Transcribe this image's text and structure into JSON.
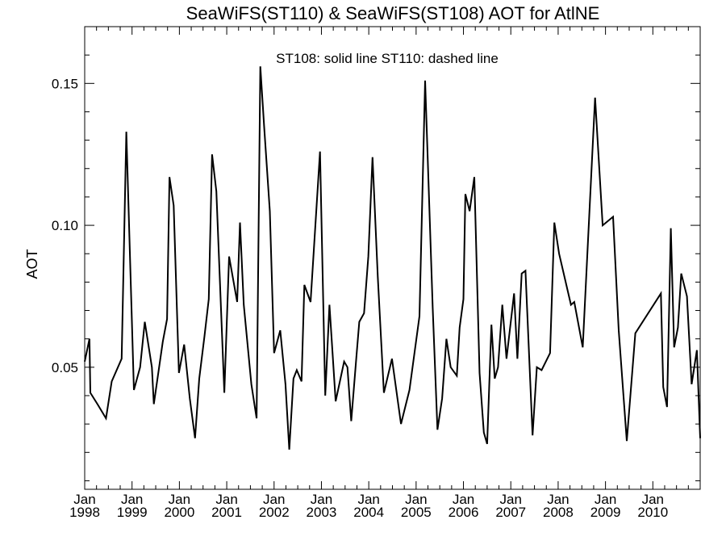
{
  "chart_data": {
    "type": "line",
    "title": "SeaWiFS(ST110) & SeaWiFS(ST108)  AOT for AtlNE",
    "annotation": "ST108: solid line   ST110: dashed line",
    "xlabel": "",
    "ylabel": "AOT",
    "xlim": [
      1998.0,
      2011.0
    ],
    "ylim": [
      0.007,
      0.17
    ],
    "yticks": [
      0.05,
      0.1,
      0.15
    ],
    "ytick_labels": [
      "0.05",
      "0.10",
      "0.15"
    ],
    "year_ticks": [
      {
        "year": 1998,
        "month": "Jan",
        "label": "1998"
      },
      {
        "year": 1999,
        "month": "Jan",
        "label": "1999"
      },
      {
        "year": 2000,
        "month": "Jan",
        "label": "2000"
      },
      {
        "year": 2001,
        "month": "Jan",
        "label": "2001"
      },
      {
        "year": 2002,
        "month": "Jan",
        "label": "2002"
      },
      {
        "year": 2003,
        "month": "Jan",
        "label": "2003"
      },
      {
        "year": 2004,
        "month": "Jan",
        "label": "2004"
      },
      {
        "year": 2005,
        "month": "Jan",
        "label": "2005"
      },
      {
        "year": 2006,
        "month": "Jan",
        "label": "2006"
      },
      {
        "year": 2007,
        "month": "Jan",
        "label": "2007"
      },
      {
        "year": 2008,
        "month": "Jan",
        "label": "2008"
      },
      {
        "year": 2009,
        "month": "Jan",
        "label": "2009"
      },
      {
        "year": 2010,
        "month": "Jan",
        "label": "2010"
      }
    ],
    "grid": false,
    "series": [
      {
        "name": "ST108",
        "style": "solid",
        "color": "#000000",
        "x": [
          1998.0,
          1998.1,
          1998.12,
          1998.27,
          1998.45,
          1998.57,
          1998.78,
          1998.88,
          1999.04,
          1999.17,
          1999.27,
          1999.42,
          1999.46,
          1999.65,
          1999.74,
          1999.79,
          1999.88,
          1999.99,
          2000.1,
          2000.22,
          2000.33,
          2000.42,
          2000.53,
          2000.62,
          2000.69,
          2000.78,
          2000.95,
          2001.05,
          2001.22,
          2001.28,
          2001.36,
          2001.52,
          2001.63,
          2001.71,
          2001.79,
          2001.91,
          2002.0,
          2002.13,
          2002.24,
          2002.32,
          2002.41,
          2002.48,
          2002.58,
          2002.64,
          2002.77,
          2002.97,
          2003.08,
          2003.17,
          2003.3,
          2003.48,
          2003.55,
          2003.63,
          2003.74,
          2003.8,
          2003.9,
          2003.99,
          2004.08,
          2004.19,
          2004.32,
          2004.49,
          2004.68,
          2004.86,
          2005.07,
          2005.19,
          2005.35,
          2005.45,
          2005.55,
          2005.64,
          2005.73,
          2005.86,
          2005.92,
          2006.0,
          2006.04,
          2006.13,
          2006.23,
          2006.34,
          2006.43,
          2006.5,
          2006.59,
          2006.66,
          2006.73,
          2006.82,
          2006.91,
          2007.07,
          2007.14,
          2007.23,
          2007.31,
          2007.46,
          2007.55,
          2007.65,
          2007.83,
          2007.92,
          2008.02,
          2008.27,
          2008.34,
          2008.52,
          2008.78,
          2008.94,
          2009.16,
          2009.28,
          2009.45,
          2009.63,
          2010.17,
          2010.22,
          2010.3,
          2010.38,
          2010.45,
          2010.53,
          2010.6,
          2010.72,
          2010.82,
          2010.93,
          2011.0
        ],
        "y": [
          0.052,
          0.06,
          0.041,
          0.037,
          0.032,
          0.045,
          0.053,
          0.133,
          0.042,
          0.05,
          0.066,
          0.05,
          0.037,
          0.059,
          0.067,
          0.117,
          0.107,
          0.048,
          0.058,
          0.039,
          0.025,
          0.046,
          0.061,
          0.074,
          0.125,
          0.112,
          0.041,
          0.089,
          0.073,
          0.101,
          0.072,
          0.044,
          0.032,
          0.156,
          0.135,
          0.105,
          0.055,
          0.063,
          0.044,
          0.021,
          0.046,
          0.049,
          0.045,
          0.079,
          0.073,
          0.126,
          0.04,
          0.072,
          0.038,
          0.052,
          0.05,
          0.031,
          0.054,
          0.066,
          0.069,
          0.089,
          0.124,
          0.082,
          0.041,
          0.053,
          0.03,
          0.042,
          0.068,
          0.151,
          0.071,
          0.028,
          0.039,
          0.06,
          0.05,
          0.047,
          0.064,
          0.074,
          0.111,
          0.105,
          0.117,
          0.048,
          0.027,
          0.023,
          0.065,
          0.046,
          0.05,
          0.072,
          0.053,
          0.076,
          0.053,
          0.083,
          0.084,
          0.026,
          0.05,
          0.049,
          0.055,
          0.101,
          0.09,
          0.072,
          0.073,
          0.057,
          0.145,
          0.1,
          0.103,
          0.063,
          0.024,
          0.062,
          0.076,
          0.043,
          0.036,
          0.099,
          0.057,
          0.064,
          0.083,
          0.075,
          0.044,
          0.056,
          0.025
        ]
      }
    ]
  }
}
